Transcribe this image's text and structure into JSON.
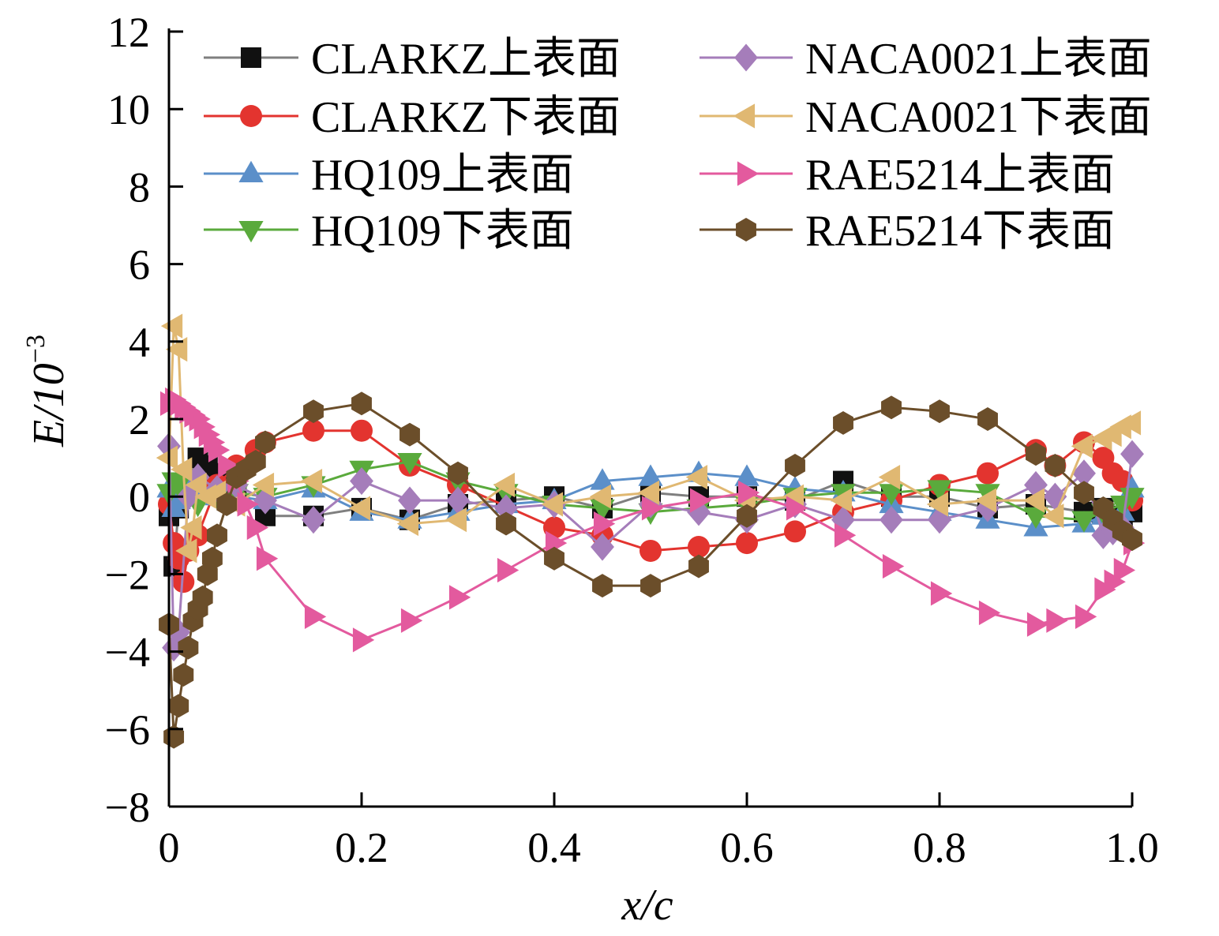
{
  "chart_data": {
    "type": "line",
    "xlabel": "x/c",
    "ylabel_main": "E/10",
    "ylabel_exp": "−3",
    "xlim": [
      0,
      1.0
    ],
    "ylim": [
      -8,
      12
    ],
    "x_ticks": [
      0,
      0.2,
      0.4,
      0.6,
      0.8,
      1.0
    ],
    "x_tick_labels": [
      "0",
      "0.2",
      "0.4",
      "0.6",
      "0.8",
      "1.0"
    ],
    "y_ticks": [
      -8,
      -6,
      -4,
      -2,
      0,
      2,
      4,
      6,
      8,
      10,
      12
    ],
    "y_tick_labels": [
      "−8",
      "−6",
      "−4",
      "−2",
      "0",
      "2",
      "4",
      "6",
      "8",
      "10",
      "12"
    ],
    "legend_position": "top",
    "grid": false,
    "series": [
      {
        "name": "CLARKZ上表面",
        "color": "#7f7f7f",
        "marker_color": "#111111",
        "marker": "square",
        "x": [
          0,
          0.005,
          0.01,
          0.02,
          0.03,
          0.04,
          0.05,
          0.07,
          0.1,
          0.15,
          0.2,
          0.25,
          0.3,
          0.35,
          0.4,
          0.45,
          0.5,
          0.55,
          0.6,
          0.65,
          0.7,
          0.75,
          0.8,
          0.85,
          0.9,
          0.95,
          0.97,
          0.99,
          1.0
        ],
        "y": [
          -0.5,
          -1.8,
          -0.3,
          0.4,
          1.0,
          0.8,
          0.6,
          0.2,
          -0.5,
          -0.5,
          -0.3,
          -0.6,
          -0.2,
          -0.1,
          0.0,
          -0.3,
          0.1,
          0.0,
          0.0,
          -0.1,
          0.4,
          0.0,
          0.0,
          -0.3,
          -0.2,
          -0.4,
          -0.3,
          -0.5,
          -0.4
        ]
      },
      {
        "name": "CLARKZ下表面",
        "color": "#e3342f",
        "marker_color": "#e3342f",
        "marker": "circle",
        "x": [
          0,
          0.005,
          0.01,
          0.015,
          0.02,
          0.03,
          0.05,
          0.07,
          0.09,
          0.1,
          0.15,
          0.2,
          0.25,
          0.3,
          0.4,
          0.45,
          0.5,
          0.55,
          0.6,
          0.65,
          0.7,
          0.75,
          0.8,
          0.85,
          0.9,
          0.92,
          0.95,
          0.97,
          0.98,
          0.99,
          1.0
        ],
        "y": [
          -0.2,
          -1.2,
          -1.6,
          -2.2,
          -1.4,
          -1.0,
          0.3,
          0.8,
          1.2,
          1.4,
          1.7,
          1.7,
          0.8,
          0.3,
          -0.8,
          -1.0,
          -1.4,
          -1.3,
          -1.2,
          -0.9,
          -0.4,
          -0.1,
          0.3,
          0.6,
          1.2,
          0.8,
          1.4,
          1.0,
          0.6,
          0.4,
          -0.1
        ]
      },
      {
        "name": "HQ109上表面",
        "color": "#5b8fc9",
        "marker_color": "#5b8fc9",
        "marker": "triangle-up",
        "x": [
          0,
          0.005,
          0.01,
          0.02,
          0.03,
          0.05,
          0.07,
          0.1,
          0.15,
          0.2,
          0.25,
          0.3,
          0.35,
          0.4,
          0.45,
          0.5,
          0.55,
          0.6,
          0.65,
          0.7,
          0.75,
          0.8,
          0.85,
          0.9,
          0.95,
          0.97,
          0.99,
          1.0
        ],
        "y": [
          0.2,
          -0.3,
          -0.1,
          0.2,
          0.1,
          0.0,
          0.0,
          -0.1,
          0.2,
          -0.4,
          -0.6,
          -0.4,
          -0.2,
          -0.1,
          0.4,
          0.5,
          0.6,
          0.5,
          0.2,
          0.1,
          -0.2,
          -0.4,
          -0.6,
          -0.8,
          -0.7,
          -0.5,
          -0.4,
          0.2
        ]
      },
      {
        "name": "HQ109下表面",
        "color": "#5aaa3c",
        "marker_color": "#5aaa3c",
        "marker": "triangle-down",
        "x": [
          0,
          0.005,
          0.01,
          0.02,
          0.03,
          0.05,
          0.07,
          0.1,
          0.15,
          0.2,
          0.25,
          0.3,
          0.35,
          0.4,
          0.45,
          0.5,
          0.55,
          0.6,
          0.65,
          0.7,
          0.75,
          0.8,
          0.85,
          0.9,
          0.95,
          0.97,
          0.99,
          1.0
        ],
        "y": [
          0.1,
          0.4,
          0.3,
          0.0,
          -0.2,
          0.0,
          0.1,
          0.0,
          0.3,
          0.7,
          0.9,
          0.4,
          0.1,
          -0.2,
          -0.3,
          -0.4,
          -0.3,
          -0.2,
          0.0,
          0.1,
          0.1,
          0.2,
          0.1,
          -0.5,
          -0.6,
          -0.4,
          -0.2,
          0.0
        ]
      },
      {
        "name": "NACA0021上表面",
        "color": "#a57dba",
        "marker_color": "#a57dba",
        "marker": "diamond",
        "x": [
          0,
          0.005,
          0.01,
          0.02,
          0.03,
          0.05,
          0.07,
          0.1,
          0.15,
          0.2,
          0.25,
          0.3,
          0.35,
          0.4,
          0.45,
          0.5,
          0.55,
          0.6,
          0.65,
          0.7,
          0.75,
          0.8,
          0.85,
          0.9,
          0.92,
          0.95,
          0.97,
          0.98,
          0.99,
          1.0
        ],
        "y": [
          1.3,
          -3.9,
          -3.5,
          0.0,
          0.5,
          0.2,
          0.3,
          -0.1,
          -0.6,
          0.4,
          -0.1,
          -0.1,
          -0.3,
          -0.2,
          -1.3,
          -0.2,
          -0.4,
          -0.6,
          -0.2,
          -0.6,
          -0.6,
          -0.6,
          -0.3,
          0.3,
          0.0,
          0.6,
          -1.0,
          -0.9,
          -0.8,
          1.1
        ]
      },
      {
        "name": "NACA0021下表面",
        "color": "#e0b872",
        "marker_color": "#e0b872",
        "marker": "triangle-left",
        "x": [
          0,
          0.005,
          0.01,
          0.015,
          0.02,
          0.025,
          0.03,
          0.04,
          0.05,
          0.07,
          0.1,
          0.15,
          0.2,
          0.25,
          0.3,
          0.35,
          0.4,
          0.45,
          0.5,
          0.55,
          0.6,
          0.65,
          0.7,
          0.75,
          0.8,
          0.85,
          0.9,
          0.92,
          0.95,
          0.97,
          0.98,
          0.99,
          1.0
        ],
        "y": [
          1.0,
          4.4,
          3.8,
          0.7,
          -1.4,
          -0.8,
          0.3,
          0.0,
          0.1,
          -0.2,
          0.3,
          0.4,
          -0.3,
          -0.7,
          -0.6,
          0.3,
          -0.2,
          0.0,
          0.1,
          0.5,
          -0.1,
          0.0,
          -0.1,
          0.5,
          -0.2,
          -0.1,
          -0.1,
          -0.5,
          1.3,
          1.5,
          1.6,
          1.8,
          1.9
        ]
      },
      {
        "name": "RAE5214上表面",
        "color": "#e35a9e",
        "marker_color": "#e35a9e",
        "marker": "triangle-right",
        "x": [
          0,
          0.005,
          0.01,
          0.015,
          0.02,
          0.025,
          0.03,
          0.035,
          0.04,
          0.045,
          0.05,
          0.06,
          0.07,
          0.08,
          0.09,
          0.1,
          0.15,
          0.2,
          0.25,
          0.3,
          0.35,
          0.4,
          0.45,
          0.5,
          0.55,
          0.6,
          0.65,
          0.7,
          0.75,
          0.8,
          0.85,
          0.9,
          0.92,
          0.95,
          0.97,
          0.98,
          0.99,
          1.0
        ],
        "y": [
          2.4,
          2.5,
          2.4,
          2.3,
          2.2,
          2.1,
          2.0,
          1.8,
          1.6,
          1.4,
          1.2,
          0.8,
          0.4,
          -0.2,
          -0.8,
          -1.6,
          -3.1,
          -3.7,
          -3.2,
          -2.6,
          -1.9,
          -1.2,
          -0.7,
          -0.3,
          -0.1,
          0.1,
          -0.3,
          -1.0,
          -1.8,
          -2.5,
          -3.0,
          -3.3,
          -3.2,
          -3.1,
          -2.4,
          -2.2,
          -1.9,
          -1.2
        ]
      },
      {
        "name": "RAE5214下表面",
        "color": "#6b4e2a",
        "marker_color": "#6b4e2a",
        "marker": "hexagon",
        "x": [
          0,
          0.005,
          0.01,
          0.015,
          0.02,
          0.025,
          0.03,
          0.035,
          0.04,
          0.045,
          0.05,
          0.06,
          0.07,
          0.08,
          0.09,
          0.1,
          0.15,
          0.2,
          0.25,
          0.3,
          0.35,
          0.4,
          0.45,
          0.5,
          0.55,
          0.6,
          0.65,
          0.7,
          0.75,
          0.8,
          0.85,
          0.9,
          0.92,
          0.95,
          0.97,
          0.98,
          0.99,
          1.0
        ],
        "y": [
          -3.3,
          -6.2,
          -5.4,
          -4.6,
          -3.9,
          -3.2,
          -2.9,
          -2.6,
          -2.0,
          -1.6,
          -1.0,
          -0.2,
          0.5,
          0.7,
          0.9,
          1.4,
          2.2,
          2.4,
          1.6,
          0.6,
          -0.7,
          -1.6,
          -2.3,
          -2.3,
          -1.8,
          -0.5,
          0.8,
          1.9,
          2.3,
          2.2,
          2.0,
          1.1,
          0.8,
          0.1,
          -0.3,
          -0.6,
          -0.9,
          -1.1
        ]
      }
    ]
  }
}
